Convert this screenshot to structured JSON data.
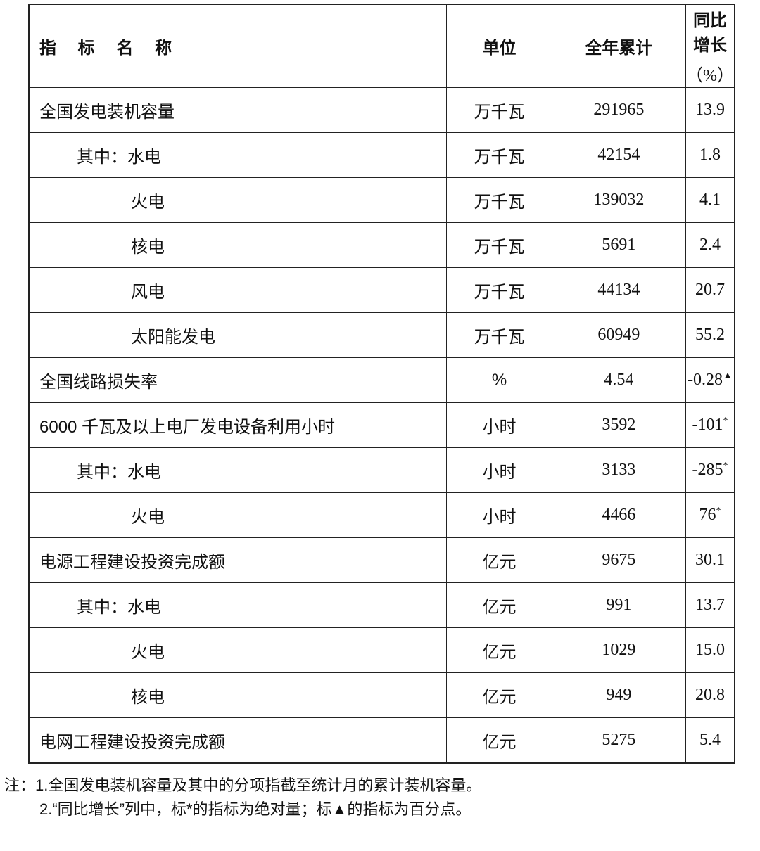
{
  "header": {
    "name": "指 标 名 称",
    "unit": "单位",
    "total": "全年累计",
    "yoy_line1": "同比增长",
    "yoy_line2": "（%）"
  },
  "rows": [
    {
      "name": "全国发电装机容量",
      "level": 0,
      "unit": "万千瓦",
      "total": "291965",
      "yoy": "13.9",
      "mark": ""
    },
    {
      "name": "其中：水电",
      "level": 1,
      "unit": "万千瓦",
      "total": "42154",
      "yoy": "1.8",
      "mark": ""
    },
    {
      "name": "火电",
      "level": 2,
      "unit": "万千瓦",
      "total": "139032",
      "yoy": "4.1",
      "mark": ""
    },
    {
      "name": "核电",
      "level": 2,
      "unit": "万千瓦",
      "total": "5691",
      "yoy": "2.4",
      "mark": ""
    },
    {
      "name": "风电",
      "level": 2,
      "unit": "万千瓦",
      "total": "44134",
      "yoy": "20.7",
      "mark": ""
    },
    {
      "name": "太阳能发电",
      "level": 2,
      "unit": "万千瓦",
      "total": "60949",
      "yoy": "55.2",
      "mark": ""
    },
    {
      "name": "全国线路损失率",
      "level": 0,
      "unit": "%",
      "total": "4.54",
      "yoy": "-0.28",
      "mark": "▲"
    },
    {
      "name": "6000 千瓦及以上电厂发电设备利用小时",
      "level": 0,
      "unit": "小时",
      "total": "3592",
      "yoy": "-101",
      "mark": "*"
    },
    {
      "name": "其中：水电",
      "level": 1,
      "unit": "小时",
      "total": "3133",
      "yoy": "-285",
      "mark": "*"
    },
    {
      "name": "火电",
      "level": 2,
      "unit": "小时",
      "total": "4466",
      "yoy": "76",
      "mark": "*"
    },
    {
      "name": "电源工程建设投资完成额",
      "level": 0,
      "unit": "亿元",
      "total": "9675",
      "yoy": "30.1",
      "mark": ""
    },
    {
      "name": "其中：水电",
      "level": 1,
      "unit": "亿元",
      "total": "991",
      "yoy": "13.7",
      "mark": ""
    },
    {
      "name": "火电",
      "level": 2,
      "unit": "亿元",
      "total": "1029",
      "yoy": "15.0",
      "mark": ""
    },
    {
      "name": "核电",
      "level": 2,
      "unit": "亿元",
      "total": "949",
      "yoy": "20.8",
      "mark": ""
    },
    {
      "name": "电网工程建设投资完成额",
      "level": 0,
      "unit": "亿元",
      "total": "5275",
      "yoy": "5.4",
      "mark": ""
    }
  ],
  "notes": {
    "note1": "注：1.全国发电装机容量及其中的分项指截至统计月的累计装机容量。",
    "note2": "2.“同比增长”列中，标*的指标为绝对量；标▲的指标为百分点。"
  }
}
